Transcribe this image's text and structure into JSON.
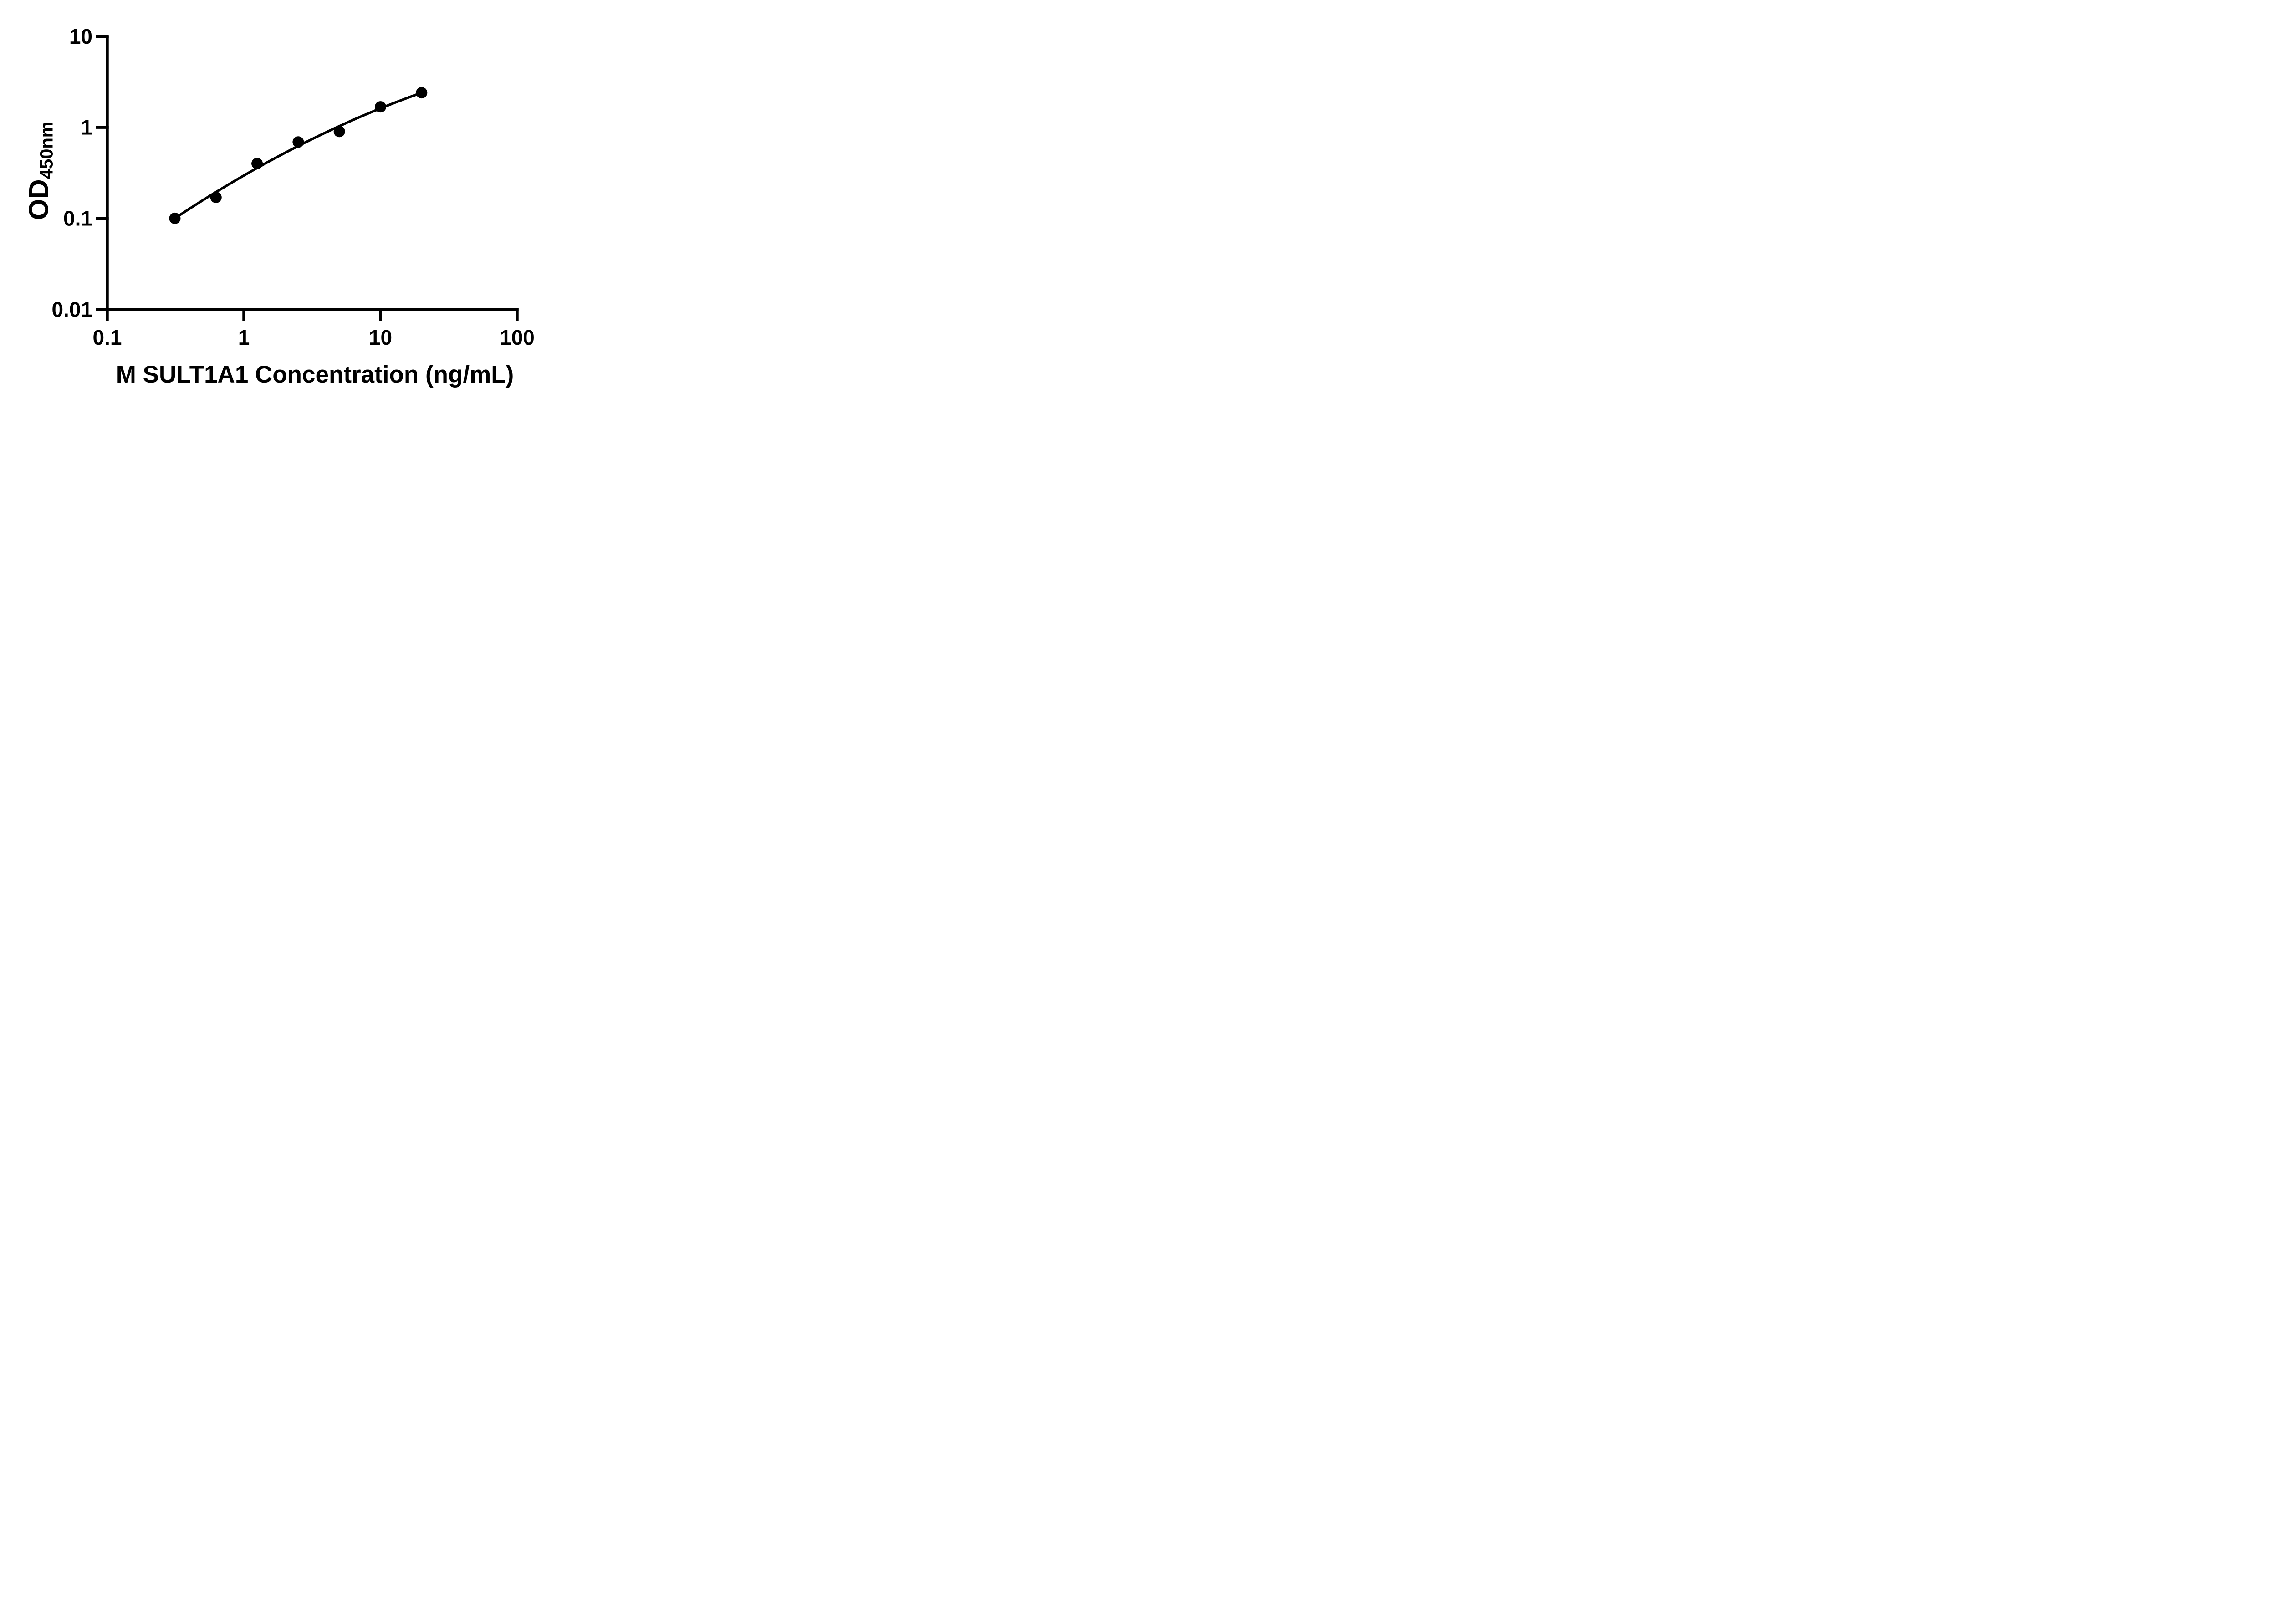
{
  "figure": {
    "background_color": "#ffffff",
    "ink_color": "#000000"
  },
  "axes": {
    "x": {
      "label": "M SULT1A1 Concentration (ng/mL)",
      "scale": "log",
      "min": 0.1,
      "max": 100,
      "ticks": [
        {
          "label": "0.1",
          "value": 0.1
        },
        {
          "label": "1",
          "value": 1
        },
        {
          "label": "10",
          "value": 10
        },
        {
          "label": "100",
          "value": 100
        }
      ]
    },
    "y": {
      "label": "OD450nm",
      "label_base": "OD",
      "label_subscript": "450nm",
      "scale": "log",
      "min": 0.01,
      "max": 10,
      "ticks": [
        {
          "label": "10",
          "value": 10
        },
        {
          "label": "1",
          "value": 1
        },
        {
          "label": "0.1",
          "value": 0.1
        },
        {
          "label": "0.01",
          "value": 0.01
        }
      ]
    }
  },
  "chart_data": {
    "type": "scatter",
    "title": "",
    "xlabel": "M SULT1A1 Concentration (ng/mL)",
    "ylabel": "OD450nm",
    "xscale": "log",
    "yscale": "log",
    "xlim": [
      0.1,
      100
    ],
    "ylim": [
      0.01,
      10
    ],
    "grid": false,
    "legend": "none",
    "x": [
      0.3125,
      0.625,
      1.25,
      2.5,
      5,
      10,
      20
    ],
    "y": [
      0.1,
      0.17,
      0.4,
      0.69,
      0.9,
      1.68,
      2.4
    ],
    "fit_line": true,
    "marker": {
      "shape": "circle",
      "color": "#000000"
    },
    "line_color": "#000000"
  }
}
